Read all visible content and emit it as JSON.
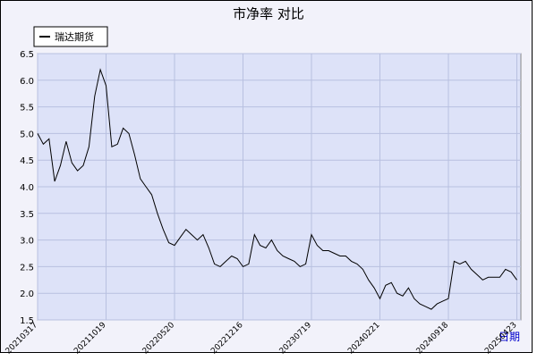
{
  "chart_data": {
    "type": "line",
    "title": "市净率  对比",
    "x_label": "日期",
    "categories": [
      "20210317",
      null,
      null,
      null,
      null,
      null,
      null,
      null,
      null,
      null,
      null,
      null,
      "20211019",
      null,
      null,
      null,
      null,
      null,
      null,
      null,
      null,
      null,
      null,
      null,
      "20220520",
      null,
      null,
      null,
      null,
      null,
      null,
      null,
      null,
      null,
      null,
      null,
      "20221216",
      null,
      null,
      null,
      null,
      null,
      null,
      null,
      null,
      null,
      null,
      null,
      "20230719",
      null,
      null,
      null,
      null,
      null,
      null,
      null,
      null,
      null,
      null,
      null,
      "20240221",
      null,
      null,
      null,
      null,
      null,
      null,
      null,
      null,
      null,
      null,
      null,
      "20240918",
      null,
      null,
      null,
      null,
      null,
      null,
      null,
      null,
      null,
      null,
      null,
      "20250423"
    ],
    "series": [
      {
        "name": "瑞达期货",
        "color": "#000000",
        "values": [
          5.0,
          4.8,
          4.9,
          4.1,
          4.4,
          4.85,
          4.45,
          4.3,
          4.4,
          4.75,
          5.7,
          6.2,
          5.9,
          4.75,
          4.8,
          5.1,
          5.0,
          4.6,
          4.15,
          4.0,
          3.85,
          3.5,
          3.2,
          2.95,
          2.9,
          3.05,
          3.2,
          3.1,
          3.0,
          3.1,
          2.85,
          2.55,
          2.5,
          2.6,
          2.7,
          2.65,
          2.5,
          2.55,
          3.1,
          2.9,
          2.85,
          3.0,
          2.8,
          2.7,
          2.65,
          2.6,
          2.5,
          2.55,
          3.1,
          2.9,
          2.8,
          2.8,
          2.75,
          2.7,
          2.7,
          2.6,
          2.55,
          2.45,
          2.25,
          2.1,
          1.9,
          2.15,
          2.2,
          2.0,
          1.95,
          2.1,
          1.9,
          1.8,
          1.75,
          1.7,
          1.8,
          1.85,
          1.9,
          2.6,
          2.55,
          2.6,
          2.45,
          2.35,
          2.25,
          2.3,
          2.3,
          2.3,
          2.45,
          2.4,
          2.25
        ]
      }
    ],
    "ylim": [
      1.5,
      6.5
    ],
    "yticks": [
      1.5,
      {
        "value": 2,
        "label": "2.0"
      },
      2.5,
      {
        "value": 3,
        "label": "3.0"
      },
      3.5,
      {
        "value": 4,
        "label": "4.0"
      },
      4.5,
      {
        "value": 5,
        "label": "5.0"
      },
      5.5,
      {
        "value": 6,
        "label": "6.0"
      },
      6.5
    ],
    "grid": true,
    "legend": "upper left"
  }
}
